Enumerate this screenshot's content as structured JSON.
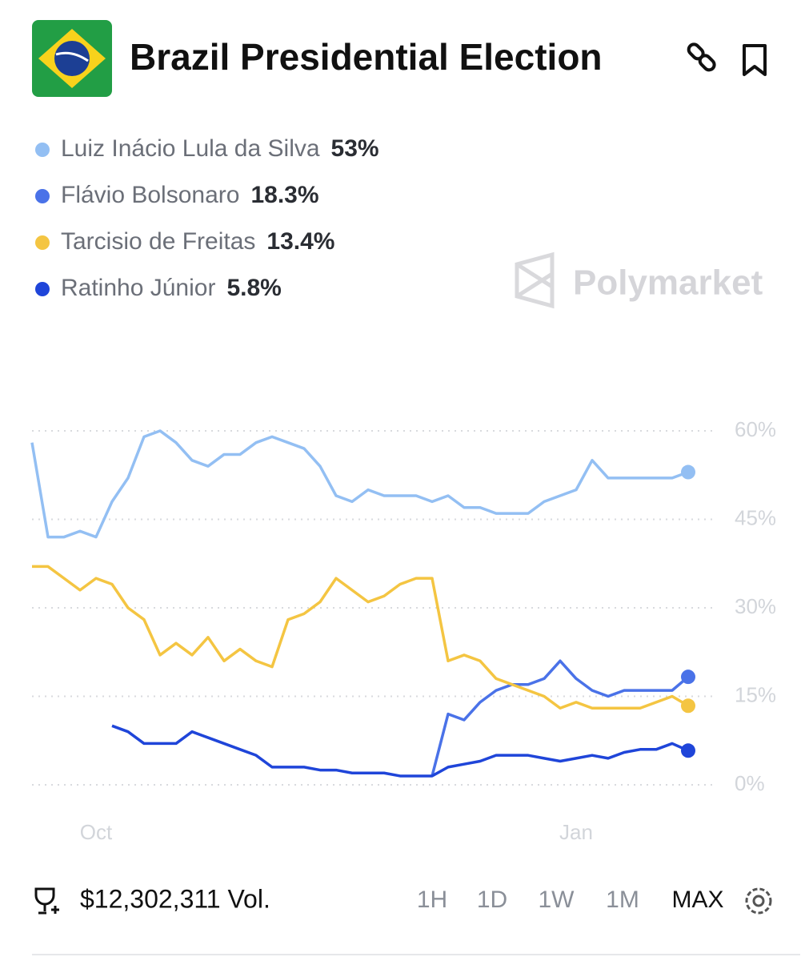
{
  "header": {
    "title": "Brazil Presidential Election",
    "watermark": "Polymarket"
  },
  "footer": {
    "volume": "$12,302,311 Vol.",
    "ranges": [
      "1H",
      "1D",
      "1W",
      "1M",
      "MAX"
    ]
  },
  "chart_data": {
    "type": "line",
    "categories": [
      null,
      null,
      null,
      null,
      "Oct",
      null,
      null,
      null,
      null,
      null,
      null,
      null,
      null,
      null,
      null,
      null,
      null,
      null,
      null,
      null,
      null,
      null,
      null,
      null,
      null,
      null,
      null,
      null,
      null,
      null,
      null,
      null,
      null,
      null,
      "Jan",
      null,
      null,
      null,
      null,
      null,
      null,
      null
    ],
    "ylim": [
      0,
      64
    ],
    "yticks": [
      {
        "value": 0,
        "label": "0%"
      },
      {
        "value": 15,
        "label": "15%"
      },
      {
        "value": 30,
        "label": "30%"
      },
      {
        "value": 45,
        "label": "45%"
      },
      {
        "value": 60,
        "label": "60%"
      }
    ],
    "grid": true,
    "series": [
      {
        "name": "Luiz Inácio Lula da Silva",
        "color": "#93bff3",
        "values": [
          58,
          42,
          42,
          43,
          42,
          48,
          52,
          59,
          60,
          58,
          55,
          54,
          56,
          56,
          58,
          59,
          58,
          57,
          54,
          49,
          48,
          50,
          49,
          49,
          49,
          48,
          49,
          47,
          47,
          46,
          46,
          46,
          48,
          49,
          50,
          55,
          52,
          52,
          52,
          52,
          52,
          53
        ],
        "value_labels": [
          null,
          null,
          null,
          null,
          null,
          null,
          null,
          null,
          null,
          null,
          null,
          null,
          null,
          null,
          null,
          null,
          null,
          null,
          null,
          null,
          null,
          null,
          null,
          null,
          null,
          null,
          null,
          null,
          null,
          null,
          null,
          null,
          null,
          null,
          null,
          null,
          null,
          null,
          null,
          null,
          null,
          "53%"
        ]
      },
      {
        "name": "Flávio Bolsonaro",
        "color": "#4a72e8",
        "values": [
          null,
          null,
          null,
          null,
          null,
          null,
          null,
          null,
          null,
          null,
          null,
          null,
          null,
          null,
          null,
          null,
          null,
          null,
          null,
          null,
          null,
          null,
          null,
          null,
          null,
          1.5,
          12,
          11,
          14,
          16,
          17,
          17,
          18,
          21,
          18,
          16,
          15,
          16,
          16,
          16,
          16,
          18.3
        ],
        "value_labels": [
          null,
          null,
          null,
          null,
          null,
          null,
          null,
          null,
          null,
          null,
          null,
          null,
          null,
          null,
          null,
          null,
          null,
          null,
          null,
          null,
          null,
          null,
          null,
          null,
          null,
          null,
          null,
          null,
          null,
          null,
          null,
          null,
          null,
          null,
          null,
          null,
          null,
          null,
          null,
          null,
          null,
          "18.3%"
        ]
      },
      {
        "name": "Tarcisio de Freitas",
        "color": "#f4c542",
        "values": [
          37,
          37,
          35,
          33,
          35,
          34,
          30,
          28,
          22,
          24,
          22,
          25,
          21,
          23,
          21,
          20,
          28,
          29,
          31,
          35,
          33,
          31,
          32,
          34,
          35,
          35,
          21,
          22,
          21,
          18,
          17,
          16,
          15,
          13,
          14,
          13,
          13,
          13,
          13,
          14,
          15,
          13.4
        ],
        "value_labels": [
          null,
          null,
          null,
          null,
          null,
          null,
          null,
          null,
          null,
          null,
          null,
          null,
          null,
          null,
          null,
          null,
          null,
          null,
          null,
          null,
          null,
          null,
          null,
          null,
          null,
          null,
          null,
          null,
          null,
          null,
          null,
          null,
          null,
          null,
          null,
          null,
          null,
          null,
          null,
          null,
          null,
          "13.4%"
        ]
      },
      {
        "name": "Ratinho Júnior",
        "color": "#1f45d9",
        "values": [
          null,
          null,
          null,
          null,
          null,
          10,
          9,
          7,
          7,
          7,
          9,
          8,
          7,
          6,
          5,
          3,
          3,
          3,
          2.5,
          2.5,
          2,
          2,
          2,
          1.5,
          1.5,
          1.5,
          3,
          3.5,
          4,
          5,
          5,
          5,
          4.5,
          4,
          4.5,
          5,
          4.5,
          5.5,
          6,
          6,
          7,
          5.8
        ],
        "value_labels": [
          null,
          null,
          null,
          null,
          null,
          null,
          null,
          null,
          null,
          null,
          null,
          null,
          null,
          null,
          null,
          null,
          null,
          null,
          null,
          null,
          null,
          null,
          null,
          null,
          null,
          null,
          null,
          null,
          null,
          null,
          null,
          null,
          null,
          null,
          null,
          null,
          null,
          null,
          null,
          null,
          null,
          "5.8%"
        ]
      }
    ]
  }
}
